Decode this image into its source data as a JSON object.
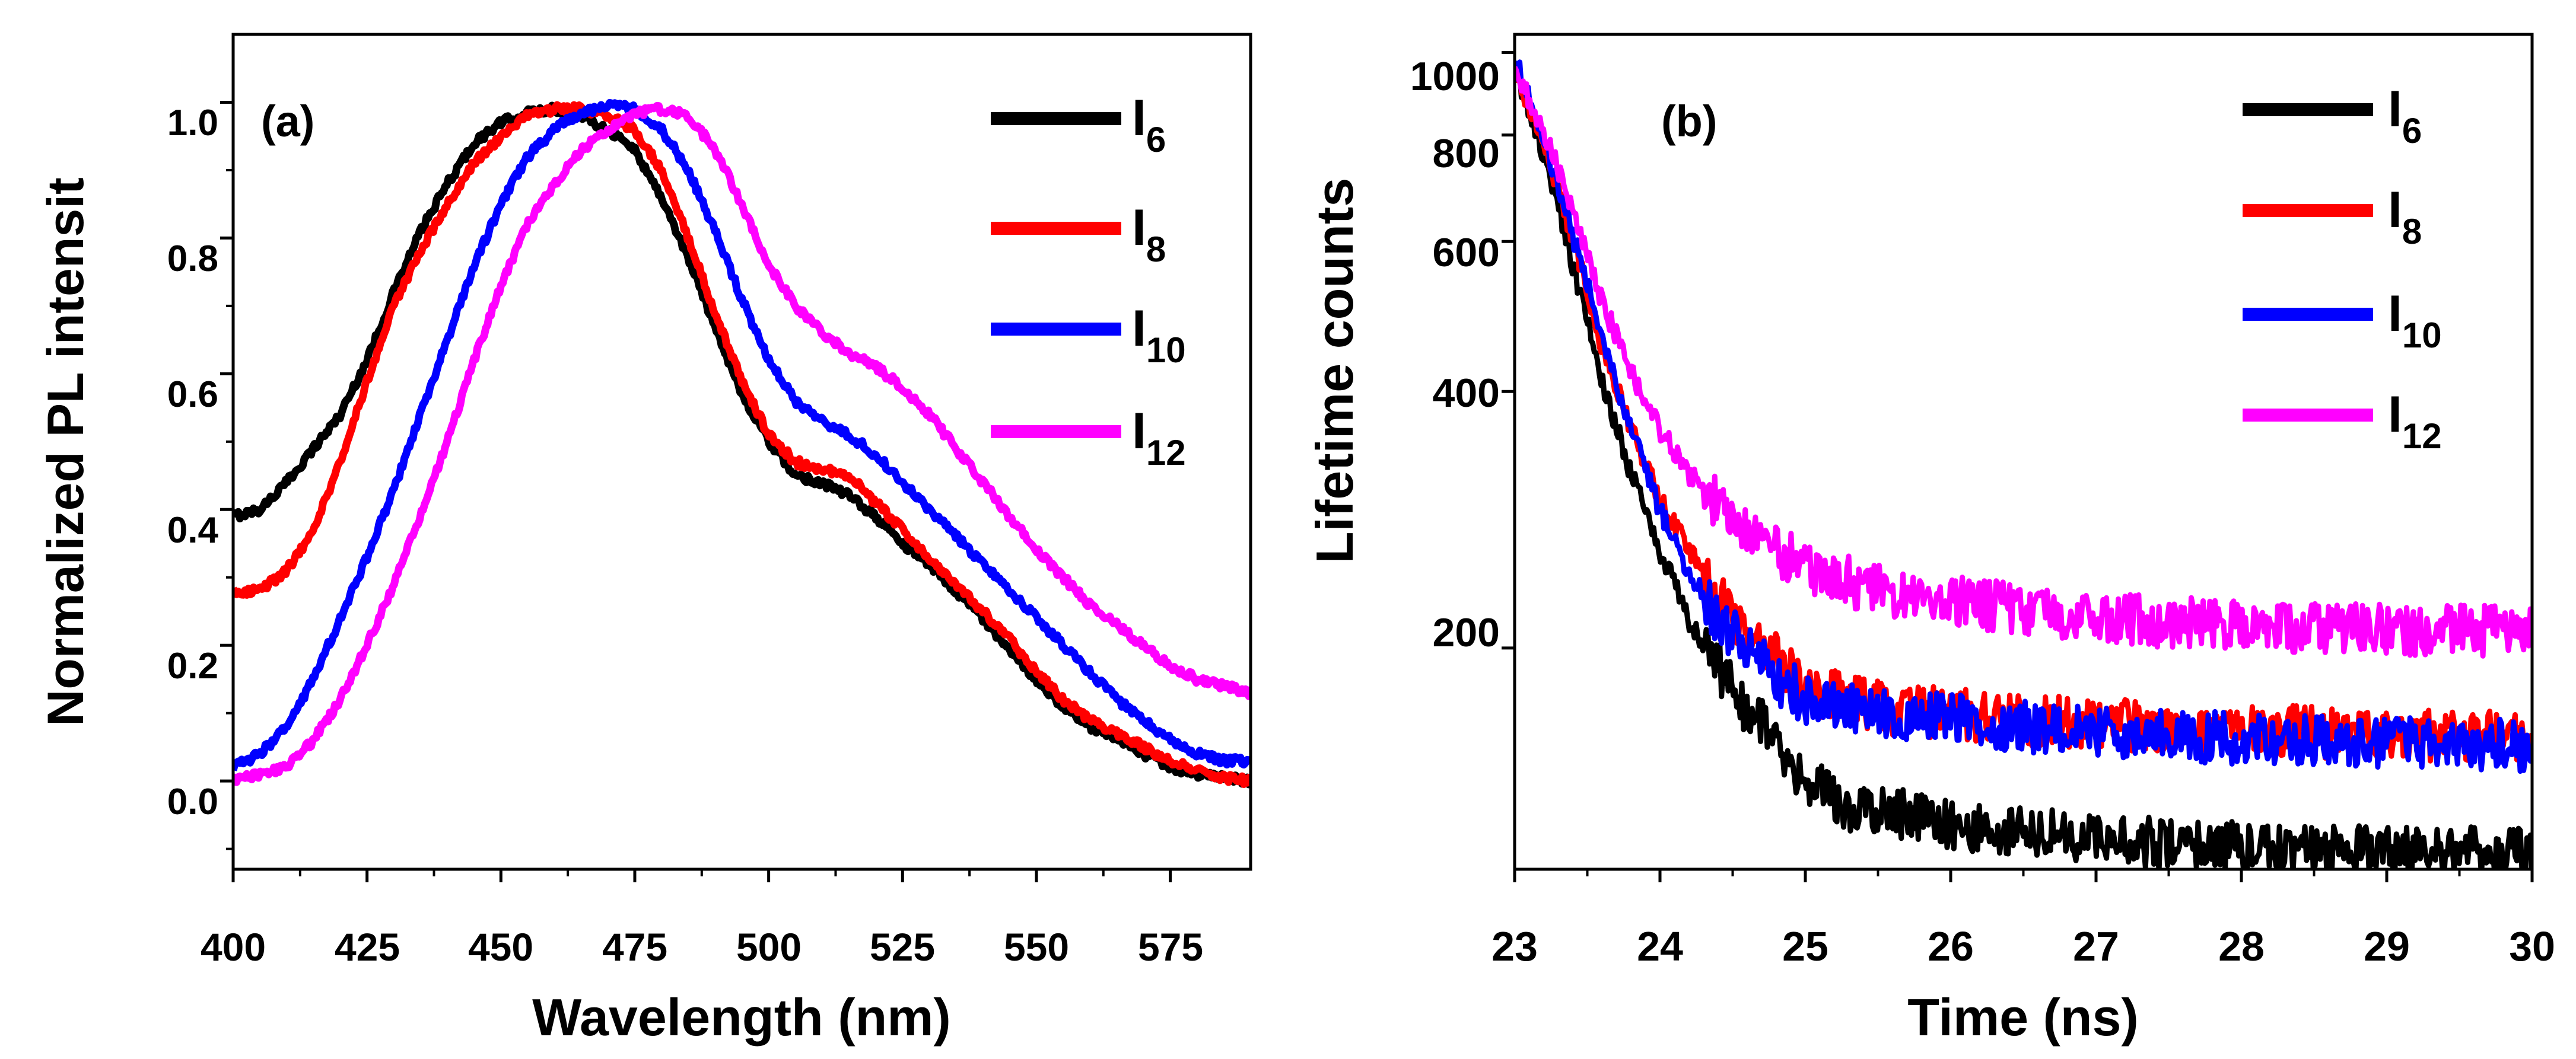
{
  "chart_data": [
    {
      "type": "line",
      "panel_label": "(a)",
      "xlabel": "Wavelength (nm)",
      "ylabel": "Normalized PL intensit",
      "xlim": [
        400,
        590
      ],
      "ylim": [
        -0.13,
        1.1
      ],
      "xticks": [
        400,
        425,
        450,
        475,
        500,
        525,
        550,
        575
      ],
      "yticks": [
        0.0,
        0.2,
        0.4,
        0.6,
        0.8,
        1.0
      ],
      "xtick_labels": [
        "400",
        "425",
        "450",
        "475",
        "500",
        "525",
        "550",
        "575"
      ],
      "ytick_labels": [
        "0.0",
        "0.2",
        "0.4",
        "0.6",
        "0.8",
        "1.0"
      ],
      "grid": false,
      "legend_position": "top-right",
      "series": [
        {
          "name": "I",
          "sub": "6",
          "color": "#000000",
          "x": [
            400,
            405,
            410,
            415,
            420,
            425,
            430,
            435,
            440,
            445,
            450,
            455,
            460,
            465,
            470,
            475,
            480,
            485,
            490,
            495,
            500,
            505,
            510,
            515,
            520,
            525,
            530,
            535,
            540,
            545,
            550,
            555,
            560,
            565,
            570,
            575,
            580,
            585,
            590
          ],
          "y": [
            0.39,
            0.4,
            0.44,
            0.49,
            0.54,
            0.62,
            0.72,
            0.81,
            0.88,
            0.94,
            0.97,
            0.985,
            0.99,
            0.98,
            0.96,
            0.93,
            0.86,
            0.77,
            0.67,
            0.57,
            0.5,
            0.45,
            0.44,
            0.42,
            0.39,
            0.35,
            0.32,
            0.28,
            0.24,
            0.19,
            0.15,
            0.11,
            0.08,
            0.06,
            0.04,
            0.02,
            0.01,
            0.005,
            0.0
          ]
        },
        {
          "name": "I",
          "sub": "8",
          "color": "#ff0000",
          "x": [
            400,
            405,
            410,
            415,
            420,
            425,
            430,
            435,
            440,
            445,
            450,
            455,
            460,
            465,
            470,
            475,
            480,
            485,
            490,
            495,
            500,
            505,
            510,
            515,
            520,
            525,
            530,
            535,
            540,
            545,
            550,
            555,
            560,
            565,
            570,
            575,
            580,
            585,
            590
          ],
          "y": [
            0.28,
            0.28,
            0.31,
            0.37,
            0.47,
            0.59,
            0.7,
            0.78,
            0.85,
            0.91,
            0.95,
            0.98,
            0.99,
            0.99,
            0.98,
            0.96,
            0.9,
            0.8,
            0.69,
            0.59,
            0.51,
            0.47,
            0.46,
            0.45,
            0.41,
            0.37,
            0.33,
            0.29,
            0.25,
            0.21,
            0.16,
            0.12,
            0.09,
            0.07,
            0.05,
            0.03,
            0.015,
            0.005,
            0.0
          ]
        },
        {
          "name": "I",
          "sub": "10",
          "color": "#0000ff",
          "x": [
            400,
            405,
            410,
            415,
            420,
            425,
            430,
            435,
            440,
            445,
            450,
            455,
            460,
            465,
            470,
            475,
            480,
            485,
            490,
            495,
            500,
            505,
            510,
            515,
            520,
            525,
            530,
            535,
            540,
            545,
            550,
            555,
            560,
            565,
            570,
            575,
            580,
            585,
            590
          ],
          "y": [
            0.02,
            0.04,
            0.08,
            0.15,
            0.24,
            0.33,
            0.43,
            0.54,
            0.65,
            0.76,
            0.85,
            0.92,
            0.96,
            0.985,
            0.995,
            0.99,
            0.96,
            0.9,
            0.81,
            0.71,
            0.62,
            0.56,
            0.53,
            0.51,
            0.48,
            0.44,
            0.4,
            0.36,
            0.32,
            0.28,
            0.24,
            0.2,
            0.16,
            0.12,
            0.09,
            0.06,
            0.04,
            0.03,
            0.03
          ]
        },
        {
          "name": "I",
          "sub": "12",
          "color": "#ff00ff",
          "x": [
            400,
            405,
            410,
            415,
            420,
            425,
            430,
            435,
            440,
            445,
            450,
            455,
            460,
            465,
            470,
            475,
            480,
            485,
            490,
            495,
            500,
            505,
            510,
            515,
            520,
            525,
            530,
            535,
            540,
            545,
            550,
            555,
            560,
            565,
            570,
            575,
            580,
            585,
            590
          ],
          "y": [
            0.0,
            0.01,
            0.02,
            0.06,
            0.12,
            0.2,
            0.29,
            0.39,
            0.5,
            0.62,
            0.73,
            0.82,
            0.88,
            0.93,
            0.96,
            0.985,
            0.99,
            0.98,
            0.93,
            0.85,
            0.76,
            0.7,
            0.66,
            0.63,
            0.61,
            0.58,
            0.54,
            0.49,
            0.44,
            0.39,
            0.34,
            0.3,
            0.26,
            0.23,
            0.2,
            0.17,
            0.15,
            0.14,
            0.13
          ]
        }
      ]
    },
    {
      "type": "line",
      "panel_label": "(b)",
      "xlabel": "Time (ns)",
      "ylabel": "Lifetime counts",
      "yscale": "log",
      "xlim": [
        23,
        30
      ],
      "ylim": [
        110,
        1050
      ],
      "xticks": [
        23,
        24,
        25,
        26,
        27,
        28,
        29,
        30
      ],
      "yticks": [
        200,
        400,
        600,
        800,
        1000
      ],
      "xtick_labels": [
        "23",
        "24",
        "25",
        "26",
        "27",
        "28",
        "29",
        "30"
      ],
      "ytick_labels": [
        "200",
        "400",
        "600",
        "800",
        "1000"
      ],
      "grid": false,
      "legend_position": "top-right",
      "series": [
        {
          "name": "I",
          "sub": "6",
          "color": "#000000",
          "x": [
            23.0,
            23.2,
            23.4,
            23.6,
            23.8,
            24.0,
            24.2,
            24.4,
            24.6,
            24.8,
            25.0,
            25.3,
            25.6,
            26.0,
            26.5,
            27.0,
            27.5,
            28.0,
            28.5,
            29.0,
            29.5,
            30.0
          ],
          "y": [
            950,
            760,
            560,
            410,
            320,
            260,
            215,
            190,
            170,
            155,
            140,
            130,
            128,
            125,
            122,
            120,
            118,
            117,
            116,
            116,
            116,
            115
          ]
        },
        {
          "name": "I",
          "sub": "8",
          "color": "#ff0000",
          "x": [
            23.0,
            23.2,
            23.4,
            23.6,
            23.8,
            24.0,
            24.2,
            24.4,
            24.6,
            24.8,
            25.0,
            25.3,
            25.6,
            26.0,
            26.5,
            27.0,
            27.5,
            28.0,
            28.5,
            29.0,
            29.5,
            30.0
          ],
          "y": [
            950,
            780,
            600,
            450,
            360,
            300,
            260,
            230,
            210,
            195,
            180,
            175,
            170,
            168,
            165,
            163,
            162,
            160,
            160,
            158,
            158,
            158
          ]
        },
        {
          "name": "I",
          "sub": "10",
          "color": "#0000ff",
          "x": [
            23.0,
            23.2,
            23.4,
            23.6,
            23.8,
            24.0,
            24.2,
            24.4,
            24.6,
            24.8,
            25.0,
            25.3,
            25.6,
            26.0,
            26.5,
            27.0,
            27.5,
            28.0,
            28.5,
            29.0,
            29.5,
            30.0
          ],
          "y": [
            980,
            790,
            610,
            460,
            360,
            290,
            245,
            215,
            200,
            185,
            175,
            170,
            168,
            165,
            162,
            160,
            158,
            157,
            156,
            155,
            155,
            154
          ]
        },
        {
          "name": "I",
          "sub": "12",
          "color": "#ff00ff",
          "x": [
            23.0,
            23.2,
            23.4,
            23.6,
            23.8,
            24.0,
            24.2,
            24.4,
            24.6,
            24.8,
            25.0,
            25.3,
            25.6,
            26.0,
            26.5,
            27.0,
            27.5,
            28.0,
            28.5,
            29.0,
            29.5,
            30.0
          ],
          "y": [
            950,
            810,
            650,
            510,
            420,
            360,
            320,
            295,
            275,
            262,
            250,
            240,
            233,
            228,
            222,
            218,
            215,
            213,
            212,
            211,
            210,
            210
          ]
        }
      ]
    }
  ]
}
